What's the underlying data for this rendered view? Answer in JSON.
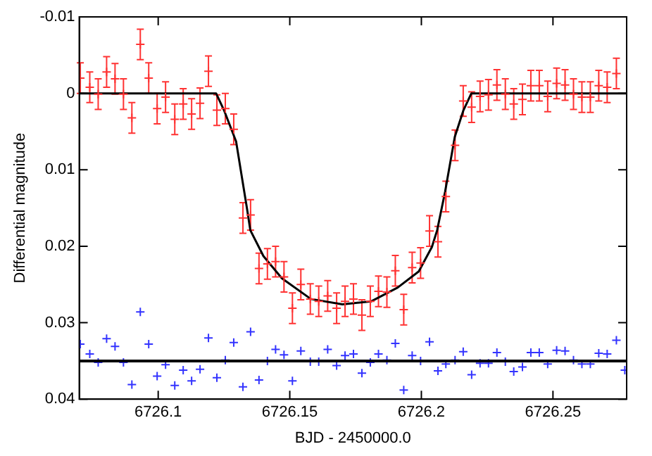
{
  "chart_data": {
    "type": "scatter",
    "xlabel": "BJD - 2450000.0",
    "ylabel": "Differential magnitude",
    "xlim": [
      6726.07,
      6726.278
    ],
    "xticks": [
      6726.1,
      6726.15,
      6726.2,
      6726.25
    ],
    "ylim": [
      0.04,
      -0.01
    ],
    "yticks": [
      -0.01,
      0,
      0.01,
      0.02,
      0.03,
      0.04
    ],
    "grid": false,
    "legend": false,
    "ref_lines": [
      {
        "axis": "y",
        "value": 0.035,
        "color": "#000000"
      }
    ],
    "series": [
      {
        "marker": "cross",
        "color": "#ff3333",
        "x": [
          6726.0704,
          6726.074,
          6726.0772,
          6726.0804,
          6726.0836,
          6726.0868,
          6726.09,
          6726.0932,
          6726.0964,
          6726.0996,
          6726.1028,
          6726.1063,
          6726.1095,
          6726.1127,
          6726.1159,
          6726.1191,
          6726.1223,
          6726.1255,
          6726.1287,
          6726.1322,
          6726.1351,
          6726.1383,
          6726.1415,
          6726.1446,
          6726.1478,
          6726.151,
          6726.1542,
          6726.1578,
          6726.161,
          6726.1644,
          6726.1678,
          6726.171,
          6726.1742,
          6726.1774,
          6726.1806,
          6726.1837,
          6726.1869,
          6726.1901,
          6726.1933,
          6726.1965,
          6726.1997,
          6726.2031,
          6726.2063,
          6726.2093,
          6726.2128,
          6726.2159,
          6726.2191,
          6726.2223,
          6726.2255,
          6726.2287,
          6726.2319,
          6726.2351,
          6726.2384,
          6726.2416,
          6726.2448,
          6726.248,
          6726.2514,
          6726.2546,
          6726.2578,
          6726.261,
          6726.2642,
          6726.2674,
          6726.2706,
          6726.2741
        ],
        "values": [
          -0.002,
          -0.0008,
          0.0001,
          -0.0028,
          -0.0019,
          0.0001,
          0.0032,
          -0.0064,
          -0.002,
          0.002,
          0.0005,
          0.0034,
          0.0014,
          0.0027,
          0.0013,
          -0.0029,
          0.0022,
          0.002,
          0.0047,
          0.0163,
          0.0159,
          0.0229,
          0.0223,
          0.022,
          0.024,
          0.0281,
          0.025,
          0.0269,
          0.0272,
          0.0265,
          0.0281,
          0.0272,
          0.0269,
          0.029,
          0.0272,
          0.0259,
          0.026,
          0.0232,
          0.0283,
          0.0228,
          0.0222,
          0.018,
          0.0194,
          0.0135,
          0.0068,
          0.001,
          0.0018,
          0.0004,
          0.0002,
          -0.0011,
          0.0001,
          0.0014,
          0.0008,
          -0.001,
          -0.001,
          0.0004,
          -0.0013,
          -0.0011,
          0.0001,
          0.0005,
          0.0005,
          -0.001,
          -0.0008,
          -0.0026
        ],
        "errors": [
          0.002,
          0.002,
          0.002,
          0.002,
          0.002,
          0.002,
          0.002,
          0.002,
          0.002,
          0.002,
          0.002,
          0.002,
          0.002,
          0.002,
          0.002,
          0.002,
          0.002,
          0.002,
          0.002,
          0.002,
          0.002,
          0.002,
          0.002,
          0.002,
          0.002,
          0.002,
          0.002,
          0.002,
          0.002,
          0.002,
          0.002,
          0.002,
          0.002,
          0.002,
          0.002,
          0.002,
          0.002,
          0.002,
          0.002,
          0.002,
          0.002,
          0.002,
          0.002,
          0.002,
          0.002,
          0.002,
          0.002,
          0.002,
          0.002,
          0.002,
          0.002,
          0.002,
          0.002,
          0.002,
          0.002,
          0.002,
          0.002,
          0.002,
          0.002,
          0.002,
          0.002,
          0.002,
          0.002,
          0.002
        ]
      },
      {
        "type": "line",
        "marker": "none",
        "color": "#000000",
        "x": [
          6726.07,
          6726.122,
          6726.125,
          6726.1296,
          6726.1338,
          6726.135,
          6726.14,
          6726.147,
          6726.158,
          6726.17,
          6726.181,
          6726.191,
          6726.199,
          6726.204,
          6726.206,
          6726.209,
          6726.2127,
          6726.216,
          6726.219,
          6726.278
        ],
        "values": [
          0,
          0,
          0.0022,
          0.0063,
          0.0152,
          0.0179,
          0.0213,
          0.0242,
          0.0269,
          0.0276,
          0.0272,
          0.0254,
          0.0233,
          0.0201,
          0.0179,
          0.0129,
          0.0057,
          0.0022,
          0,
          0
        ]
      },
      {
        "marker": "cross",
        "color": "#3333ff",
        "x": [
          6726.0704,
          6726.074,
          6726.0772,
          6726.0804,
          6726.0836,
          6726.0868,
          6726.09,
          6726.0932,
          6726.0964,
          6726.0996,
          6726.1028,
          6726.1063,
          6726.1095,
          6726.1127,
          6726.1159,
          6726.1191,
          6726.1223,
          6726.1255,
          6726.1287,
          6726.1322,
          6726.1351,
          6726.1383,
          6726.1415,
          6726.1446,
          6726.1478,
          6726.151,
          6726.1542,
          6726.1578,
          6726.161,
          6726.1644,
          6726.1678,
          6726.171,
          6726.1742,
          6726.1774,
          6726.1806,
          6726.1837,
          6726.1869,
          6726.1901,
          6726.1933,
          6726.1965,
          6726.1997,
          6726.2031,
          6726.2063,
          6726.2093,
          6726.2128,
          6726.2159,
          6726.2191,
          6726.2223,
          6726.2255,
          6726.2287,
          6726.2319,
          6726.2351,
          6726.2384,
          6726.2416,
          6726.2448,
          6726.248,
          6726.2514,
          6726.2546,
          6726.2578,
          6726.261,
          6726.2642,
          6726.2674,
          6726.2706,
          6726.2741,
          6726.2773
        ],
        "values": [
          0.0328,
          0.0341,
          0.0352,
          0.0321,
          0.0331,
          0.0352,
          0.0381,
          0.0286,
          0.0328,
          0.037,
          0.0355,
          0.0382,
          0.0362,
          0.0376,
          0.0361,
          0.032,
          0.0372,
          0.0349,
          0.0326,
          0.0384,
          0.0312,
          0.0375,
          0.035,
          0.0335,
          0.0342,
          0.0376,
          0.0337,
          0.0351,
          0.0351,
          0.0335,
          0.0356,
          0.0343,
          0.0341,
          0.0366,
          0.0352,
          0.0341,
          0.0349,
          0.0327,
          0.0388,
          0.0343,
          0.035,
          0.0325,
          0.0363,
          0.0354,
          0.0349,
          0.0338,
          0.0368,
          0.0353,
          0.0353,
          0.0339,
          0.0351,
          0.0364,
          0.0358,
          0.0339,
          0.0339,
          0.0354,
          0.0336,
          0.0337,
          0.0349,
          0.0354,
          0.0354,
          0.034,
          0.0341,
          0.0323,
          0.0362
        ]
      }
    ]
  }
}
